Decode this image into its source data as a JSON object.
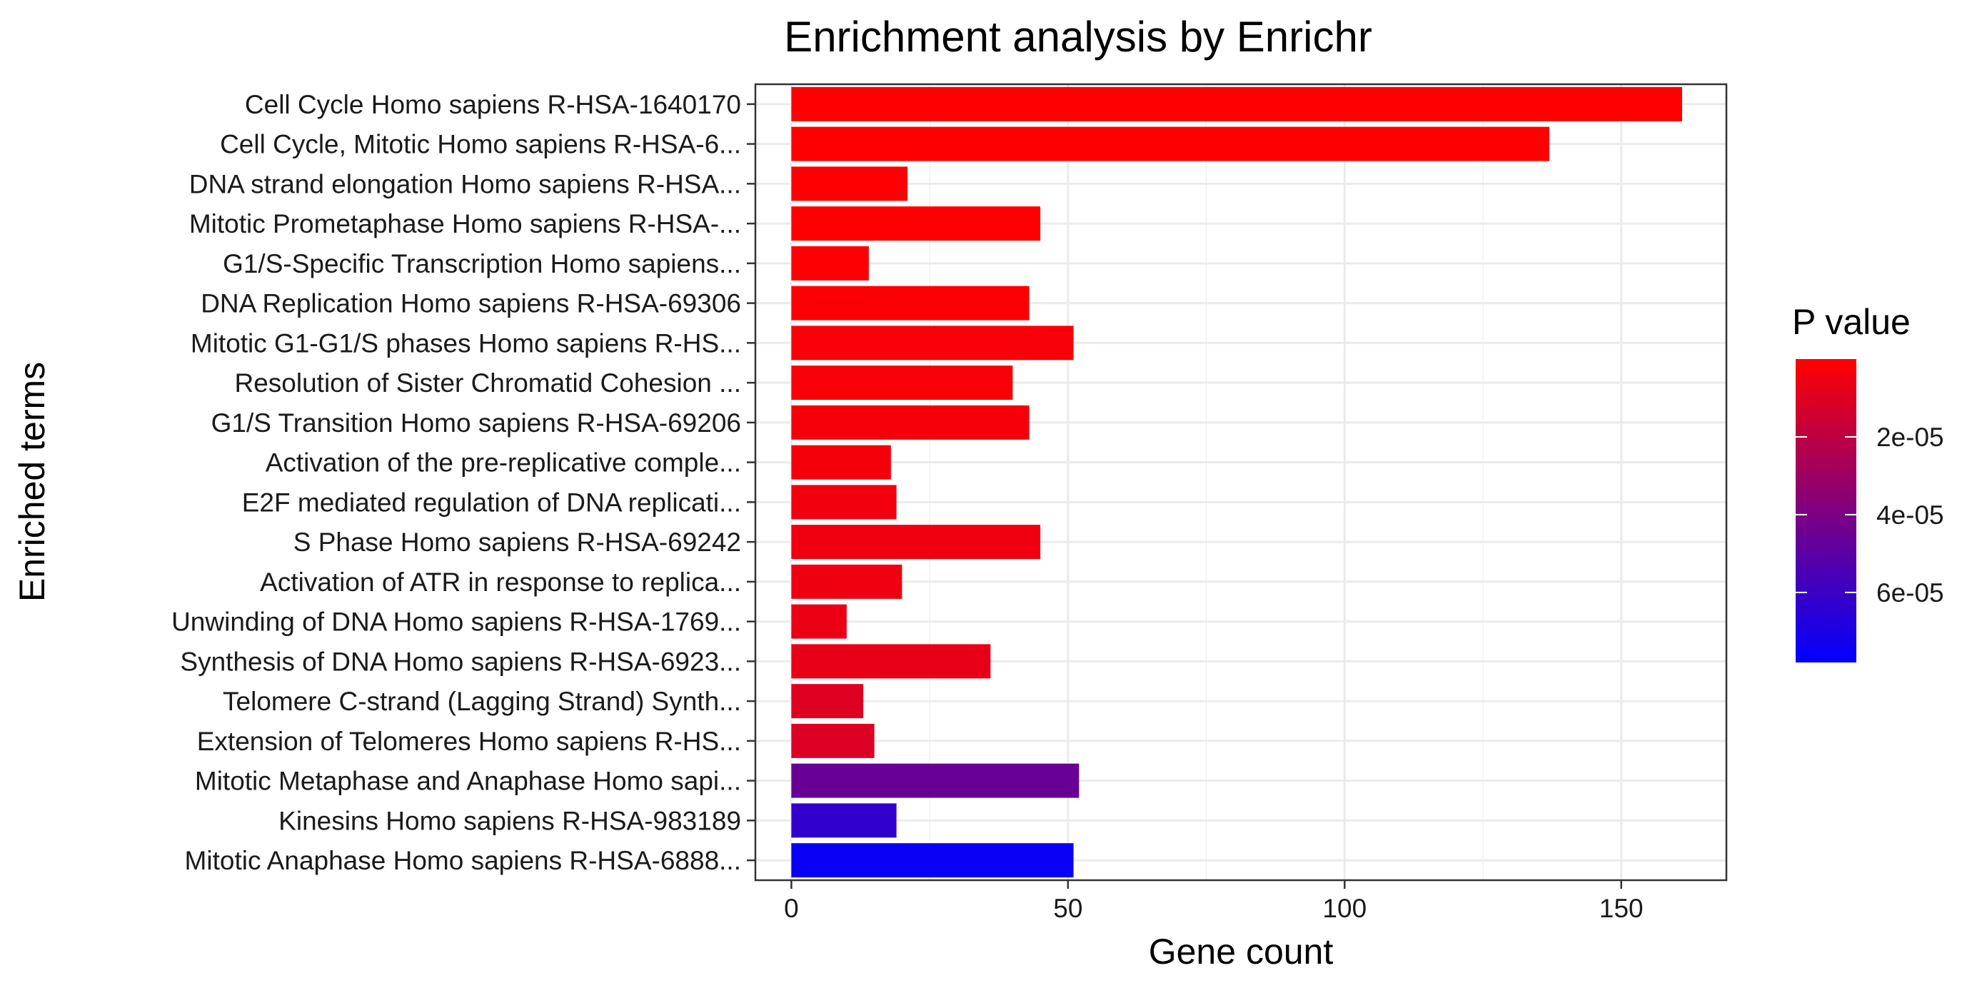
{
  "chart_data": {
    "type": "bar",
    "orientation": "horizontal",
    "title": "Enrichment analysis by Enrichr",
    "xlabel": "Gene count",
    "ylabel": "Enriched terms",
    "xlim": [
      -6.5,
      169
    ],
    "x_ticks": [
      0,
      50,
      100,
      150
    ],
    "x_tick_labels": [
      "0",
      "50",
      "100",
      "150"
    ],
    "grid": true,
    "categories": [
      "Cell Cycle Homo sapiens R-HSA-1640170",
      "Cell Cycle, Mitotic Homo sapiens R-HSA-6...",
      "DNA strand elongation Homo sapiens R-HSA...",
      "Mitotic Prometaphase Homo sapiens R-HSA-...",
      "G1/S-Specific Transcription Homo sapiens...",
      "DNA Replication Homo sapiens R-HSA-69306",
      "Mitotic G1-G1/S phases Homo sapiens R-HS...",
      "Resolution of Sister Chromatid Cohesion ...",
      "G1/S Transition Homo sapiens R-HSA-69206",
      "Activation of the pre-replicative comple...",
      "E2F mediated regulation of DNA replicati...",
      "S Phase Homo sapiens R-HSA-69242",
      "Activation of ATR in response to replica...",
      "Unwinding of DNA Homo sapiens R-HSA-1769...",
      "Synthesis of DNA Homo sapiens R-HSA-6923...",
      "Telomere C-strand (Lagging Strand) Synth...",
      "Extension of Telomeres Homo sapiens R-HS...",
      "Mitotic Metaphase and Anaphase Homo sapi...",
      "Kinesins Homo sapiens R-HSA-983189",
      "Mitotic Anaphase Homo sapiens R-HSA-6888..."
    ],
    "values": [
      161,
      137,
      21,
      45,
      14,
      43,
      51,
      40,
      43,
      18,
      19,
      45,
      20,
      10,
      36,
      13,
      15,
      52,
      19,
      51
    ],
    "p_values": [
      1e-09,
      1e-08,
      2e-07,
      4e-07,
      1e-06,
      1.5e-06,
      2e-06,
      2.5e-06,
      3e-06,
      3.5e-06,
      4e-06,
      4.5e-06,
      5e-06,
      6e-06,
      7e-06,
      1e-05,
      1.1e-05,
      4.6e-05,
      6.3e-05,
      7.5e-05
    ],
    "legend": {
      "title": "P value",
      "placement": "right",
      "range": [
        0,
        7.8e-05
      ],
      "ticks": [
        2e-05,
        4e-05,
        6e-05
      ],
      "tick_labels": [
        "2e-05",
        "4e-05",
        "6e-05"
      ],
      "low_color": "#ff0000",
      "high_color": "#0000ff"
    }
  }
}
